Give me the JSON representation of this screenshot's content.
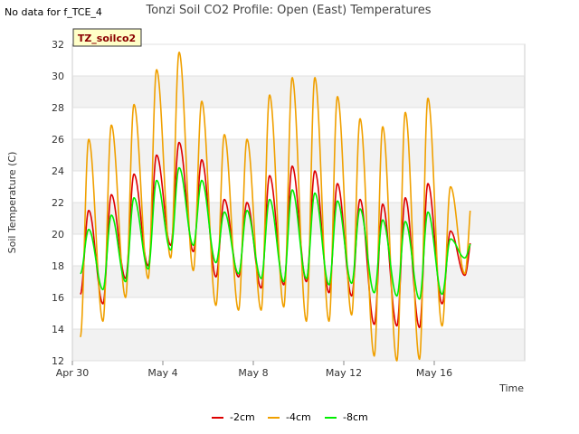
{
  "chart_data": {
    "type": "line",
    "title": "Tonzi Soil CO2 Profile: Open (East) Temperatures",
    "no_data_note": "No data for f_TCE_4",
    "badge": "TZ_soilco2",
    "xlabel": "Time",
    "ylabel": "Soil Temperature (C)",
    "x_ticks": [
      "Apr 30",
      "May 4",
      "May 8",
      "May 12",
      "May 16"
    ],
    "y_ticks": [
      "12",
      "14",
      "16",
      "18",
      "20",
      "22",
      "24",
      "26",
      "28",
      "30",
      "32"
    ],
    "ylim": [
      12,
      32
    ],
    "grid": "horizontal bands",
    "legend_position": "bottom",
    "x_unit": "days since Apr 30",
    "series": [
      {
        "name": "-2cm",
        "color": "#dd0000",
        "peaks": [
          21.5,
          22.5,
          23.8,
          25.0,
          25.8,
          24.7,
          22.2,
          22.0,
          23.7,
          24.3,
          24.0,
          23.2,
          22.2,
          21.9,
          22.3,
          23.2,
          20.2
        ],
        "troughs": [
          16.2,
          15.6,
          17.2,
          18.0,
          19.3,
          18.9,
          17.3,
          17.3,
          16.6,
          16.8,
          17.0,
          16.3,
          16.1,
          14.3,
          14.2,
          14.1,
          15.6,
          17.4
        ]
      },
      {
        "name": "-4cm",
        "color": "#f0a000",
        "peaks": [
          26.0,
          26.9,
          28.2,
          30.4,
          31.5,
          28.4,
          26.3,
          26.0,
          28.8,
          29.9,
          29.9,
          28.7,
          27.3,
          26.8,
          27.7,
          28.6,
          23.0
        ],
        "troughs": [
          13.5,
          14.5,
          16.0,
          17.2,
          18.5,
          17.7,
          15.5,
          15.2,
          15.2,
          15.4,
          14.5,
          14.5,
          14.9,
          12.3,
          12.0,
          12.1,
          14.2,
          17.5
        ]
      },
      {
        "name": "-8cm",
        "color": "#00ee00",
        "peaks": [
          20.3,
          21.2,
          22.3,
          23.4,
          24.2,
          23.4,
          21.4,
          21.5,
          22.2,
          22.8,
          22.6,
          22.1,
          21.6,
          20.9,
          20.8,
          21.4,
          19.7
        ],
        "troughs": [
          17.5,
          16.5,
          17.0,
          17.8,
          19.0,
          19.3,
          18.2,
          17.5,
          17.2,
          17.0,
          17.2,
          16.8,
          16.9,
          16.3,
          16.1,
          15.9,
          16.2,
          18.5
        ]
      }
    ]
  }
}
